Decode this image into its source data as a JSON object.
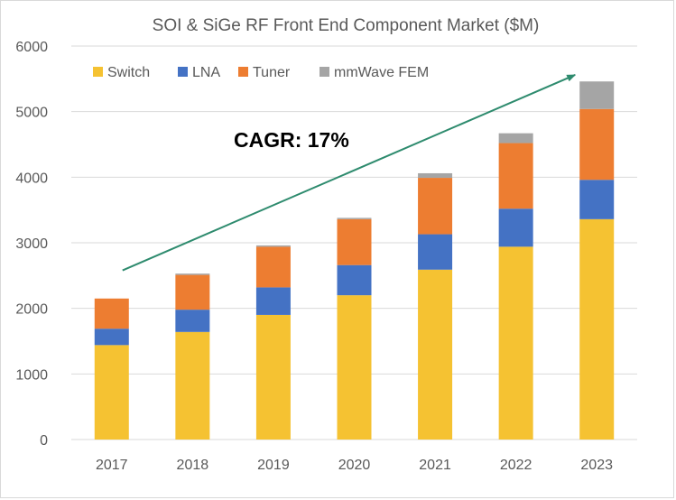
{
  "chart_data": {
    "type": "bar",
    "stacked": true,
    "title": "SOI & SiGe RF Front End Component Market ($M)",
    "xlabel": "",
    "ylabel": "",
    "categories": [
      "2017",
      "2018",
      "2019",
      "2020",
      "2021",
      "2022",
      "2023"
    ],
    "series": [
      {
        "name": "Switch",
        "color": "#f5c232",
        "values": [
          1440,
          1640,
          1900,
          2200,
          2590,
          2940,
          3360
        ]
      },
      {
        "name": "LNA",
        "color": "#4472c4",
        "values": [
          250,
          340,
          420,
          460,
          540,
          580,
          600
        ]
      },
      {
        "name": "Tuner",
        "color": "#ed7d31",
        "values": [
          460,
          530,
          620,
          700,
          860,
          1000,
          1080
        ]
      },
      {
        "name": "mmWave FEM",
        "color": "#a5a5a5",
        "values": [
          0,
          20,
          20,
          20,
          70,
          150,
          420
        ]
      }
    ],
    "ylim": [
      0,
      6000
    ],
    "yticks": [
      "0",
      "1000",
      "2000",
      "3000",
      "4000",
      "5000",
      "6000"
    ],
    "grid": true,
    "legend_position": "top-left",
    "annotations": [
      {
        "text": "CAGR: 17%"
      }
    ],
    "trend_arrow": {
      "color": "#2e8b6e",
      "from": {
        "category": "2017",
        "value": 2580
      },
      "to": {
        "category": "2023",
        "value": 5560
      }
    }
  }
}
